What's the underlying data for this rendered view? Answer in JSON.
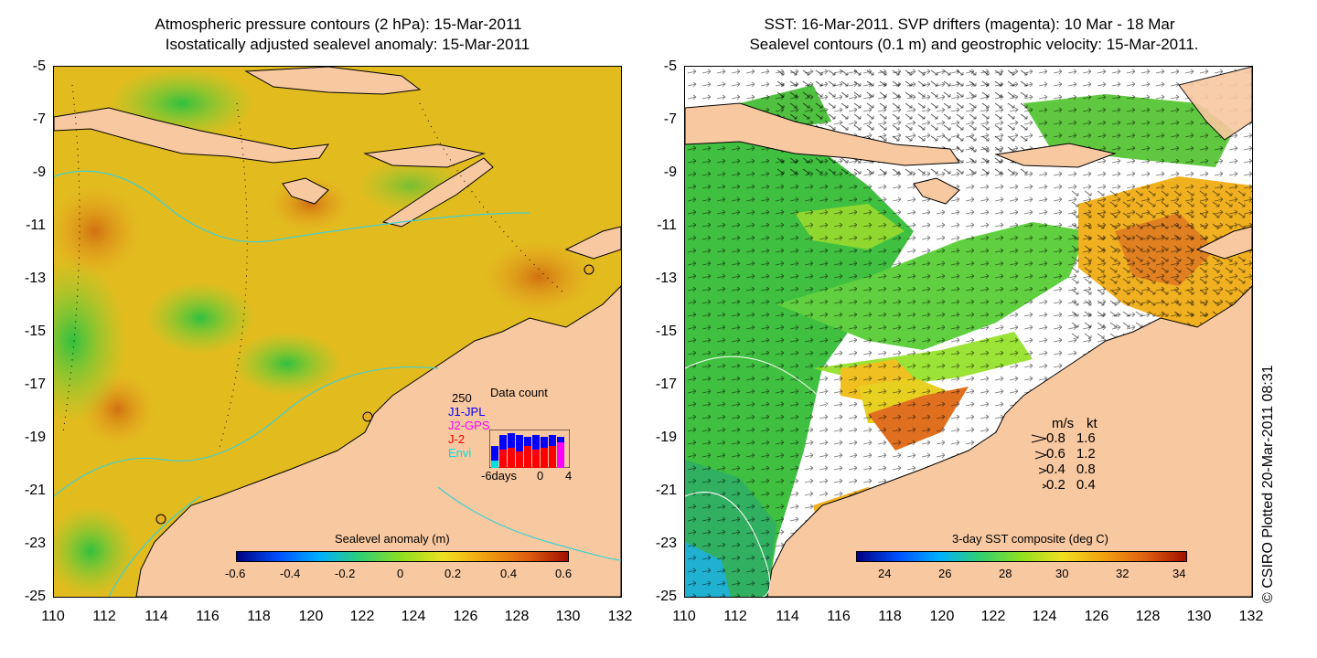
{
  "left_panel": {
    "title_line1": "Atmospheric pressure contours (2 hPa): 15-Mar-2011",
    "title_line2": "Isostatically adjusted sealevel anomaly: 15-Mar-2011",
    "colorbar_label": "Sealevel anomaly (m)",
    "colorbar_ticks": [
      "-0.6",
      "-0.4",
      "-0.2",
      "0",
      "0.2",
      "0.4",
      "0.6"
    ],
    "inset": {
      "title": "Data count",
      "top_value": "250",
      "legend": [
        {
          "label": "J1-JPL",
          "color": "#0000ff"
        },
        {
          "label": "J2-GPS",
          "color": "#ff00ff"
        },
        {
          "label": "J-2",
          "color": "#ff0000"
        },
        {
          "label": "Envi",
          "color": "#00e0e0"
        }
      ],
      "x_ticks": [
        "-6days",
        "0",
        "4"
      ]
    }
  },
  "right_panel": {
    "title_line1": "SST: 16-Mar-2011. SVP drifters (magenta): 10 Mar - 18 Mar",
    "title_line2": "Sealevel contours (0.1 m) and geostrophic velocity: 15-Mar-2011.",
    "colorbar_label": "3-day SST composite (deg C)",
    "colorbar_ticks": [
      "24",
      "26",
      "28",
      "30",
      "32",
      "34"
    ],
    "velocity_legend": {
      "header_ms": "m/s",
      "header_kt": "kt",
      "rows": [
        {
          "ms": "0.8",
          "kt": "1.6"
        },
        {
          "ms": "0.6",
          "kt": "1.2"
        },
        {
          "ms": "0.4",
          "kt": "0.8"
        },
        {
          "ms": "0.2",
          "kt": "0.4"
        }
      ]
    }
  },
  "y_axis_labels": [
    "-5",
    "-7",
    "-9",
    "-11",
    "-13",
    "-15",
    "-17",
    "-19",
    "-21",
    "-23",
    "-25"
  ],
  "x_axis_labels": [
    "110",
    "112",
    "114",
    "116",
    "118",
    "120",
    "122",
    "124",
    "126",
    "128",
    "130",
    "132"
  ],
  "credit": "© CSIRO Plotted 20-Mar-2011 08:31",
  "colors": {
    "land": "#f8c8a0",
    "ocean_ssh": "#f0c020",
    "ocean_sst_missing": "#ffffff",
    "contour": "#40d0d0"
  }
}
